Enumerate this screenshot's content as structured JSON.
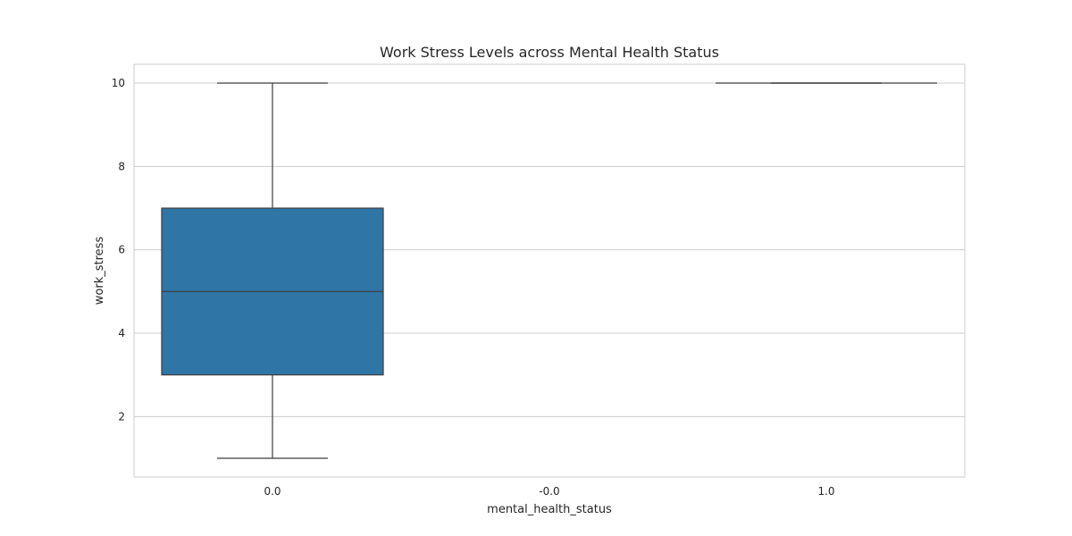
{
  "chart_data": {
    "type": "box",
    "title": "Work Stress Levels across Mental Health Status",
    "xlabel": "mental_health_status",
    "ylabel": "work_stress",
    "categories": [
      "0.0",
      "-0.0",
      "1.0"
    ],
    "yticks": [
      2,
      4,
      6,
      8,
      10
    ],
    "ylim": [
      0.55,
      10.45
    ],
    "grid": true,
    "colors": {
      "box_fill": "#2f75a6",
      "line": "#3d3d3d",
      "grid": "#cccccc"
    },
    "boxes": [
      {
        "category": "0.0",
        "whisker_low": 1,
        "q1": 3,
        "median": 5,
        "q3": 7,
        "whisker_high": 10
      },
      {
        "category": "-0.0"
      },
      {
        "category": "1.0",
        "whisker_low": 10,
        "q1": 10,
        "median": 10,
        "q3": 10,
        "whisker_high": 10
      }
    ]
  }
}
